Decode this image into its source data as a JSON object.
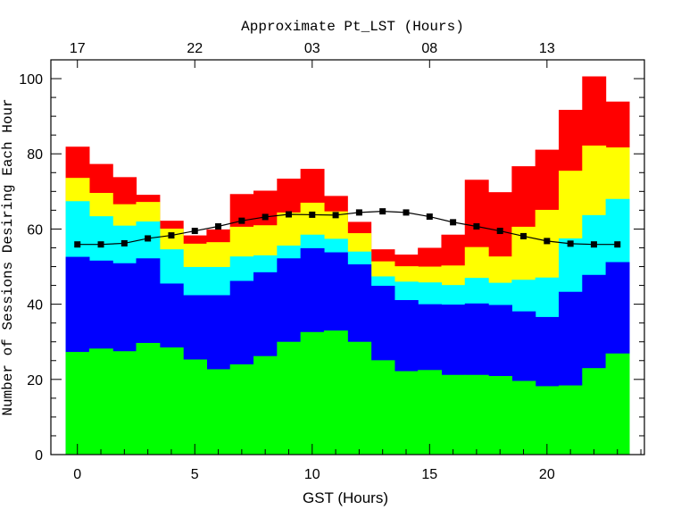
{
  "chart_data": {
    "type": "bar",
    "stacked": true,
    "title": "",
    "xlabel": "GST (Hours)",
    "ylabel": "Number of Sessions Desiring Each Hour",
    "top_xlabel": "Approximate Pt_LST (Hours)",
    "xlim": [
      -1.13,
      24.15
    ],
    "ylim": [
      0,
      105
    ],
    "xticks": [
      0,
      5,
      10,
      15,
      20
    ],
    "xtick_labels": [
      "0",
      "5",
      "10",
      "15",
      "20"
    ],
    "top_xticks": [
      0,
      5,
      10,
      15,
      20
    ],
    "top_xtick_labels": [
      "17",
      "22",
      "03",
      "08",
      "13"
    ],
    "yticks": [
      0,
      20,
      40,
      60,
      80,
      100
    ],
    "ytick_labels": [
      "0",
      "20",
      "40",
      "60",
      "80",
      "100"
    ],
    "grid": false,
    "categories": [
      0,
      1,
      2,
      3,
      4,
      5,
      6,
      7,
      8,
      9,
      10,
      11,
      12,
      13,
      14,
      15,
      16,
      17,
      18,
      19,
      20,
      21,
      22,
      23
    ],
    "cumulative_tops": [
      {
        "color": "#00ff00",
        "values": [
          27.3,
          28.2,
          27.5,
          29.7,
          28.5,
          25.3,
          22.7,
          24.0,
          26.2,
          30.0,
          32.6,
          33.0,
          30.0,
          25.1,
          22.2,
          22.5,
          21.2,
          21.2,
          20.9,
          19.6,
          18.2,
          18.4,
          23.0,
          26.9
        ]
      },
      {
        "color": "#0000ff",
        "values": [
          52.6,
          51.6,
          50.9,
          52.2,
          45.5,
          42.4,
          42.4,
          46.2,
          48.5,
          52.2,
          54.9,
          53.8,
          50.6,
          44.9,
          41.1,
          40.0,
          39.9,
          40.2,
          39.8,
          38.1,
          36.6,
          43.3,
          47.8,
          51.2
        ]
      },
      {
        "color": "#00ffff",
        "values": [
          67.4,
          63.4,
          60.9,
          62.0,
          54.6,
          49.9,
          49.9,
          52.7,
          53.0,
          55.6,
          58.5,
          57.4,
          54.0,
          47.4,
          46.0,
          45.8,
          45.1,
          47.0,
          45.7,
          46.5,
          47.1,
          57.5,
          63.7,
          68.0
        ]
      },
      {
        "color": "#ffff00",
        "values": [
          73.6,
          69.6,
          66.6,
          67.2,
          60.1,
          56.1,
          56.5,
          60.6,
          61.0,
          64.4,
          67.0,
          64.7,
          58.9,
          51.4,
          50.1,
          50.0,
          50.3,
          55.2,
          52.7,
          60.6,
          65.1,
          75.5,
          82.2,
          81.7
        ]
      },
      {
        "color": "#ff0000",
        "values": [
          81.9,
          77.3,
          73.8,
          69.1,
          62.2,
          58.3,
          59.9,
          69.3,
          70.2,
          73.4,
          76.0,
          68.8,
          61.9,
          54.6,
          53.2,
          55.0,
          58.5,
          73.1,
          69.8,
          76.7,
          81.1,
          91.7,
          100.6,
          93.9
        ]
      }
    ],
    "line": {
      "color": "#000000",
      "marker": "square",
      "x": [
        0,
        1,
        2,
        3,
        4,
        5,
        6,
        7,
        8,
        9,
        10,
        11,
        12,
        13,
        14,
        15,
        16,
        17,
        18,
        19,
        20,
        21,
        22,
        23
      ],
      "y": [
        55.9,
        55.9,
        56.2,
        57.5,
        58.3,
        59.5,
        60.7,
        62.2,
        63.2,
        63.9,
        63.8,
        63.7,
        64.4,
        64.7,
        64.4,
        63.3,
        61.8,
        60.7,
        59.5,
        58.1,
        56.8,
        56.1,
        55.9,
        55.9
      ]
    }
  }
}
